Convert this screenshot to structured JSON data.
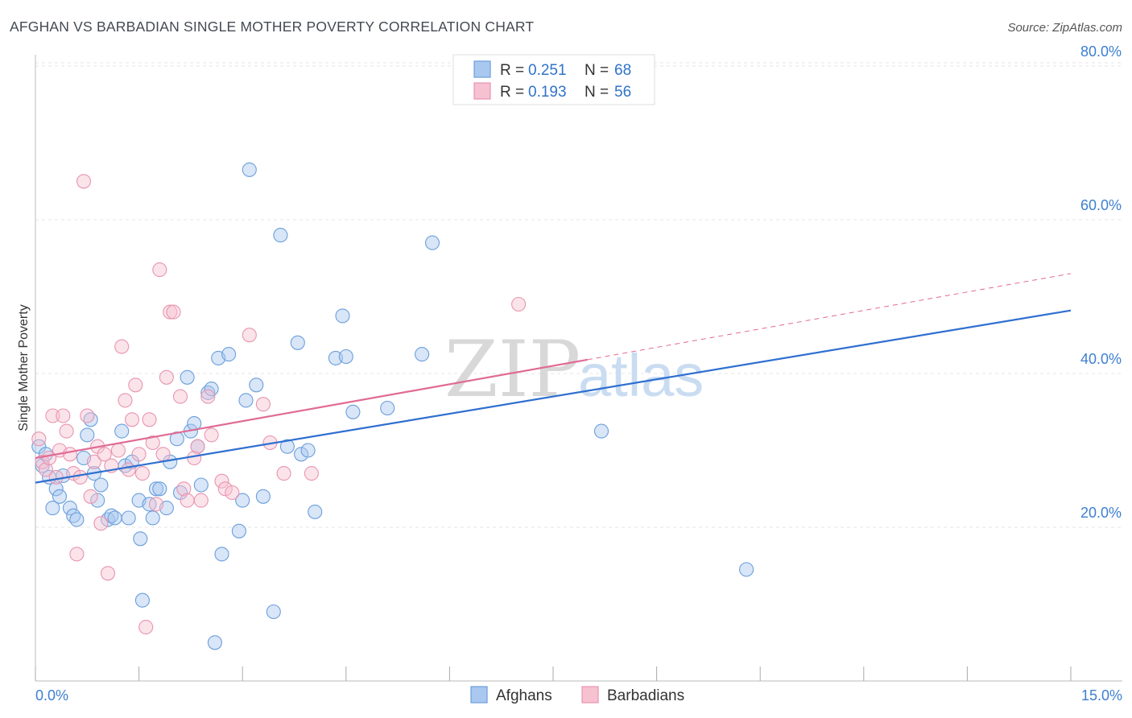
{
  "header": {
    "title": "AFGHAN VS BARBADIAN SINGLE MOTHER POVERTY CORRELATION CHART",
    "source": "Source: ZipAtlas.com"
  },
  "watermark": {
    "zip": "ZIP",
    "atlas": "atlas"
  },
  "legend": {
    "rows": [
      {
        "r_label": "R =",
        "r_value": "0.251",
        "n_label": "N =",
        "n_value": "68",
        "color": "#a9c8ef",
        "stroke": "#6b9edb"
      },
      {
        "r_label": "R =",
        "r_value": "0.193",
        "n_label": "N =",
        "n_value": "56",
        "color": "#f6c1d1",
        "stroke": "#e895b0"
      }
    ]
  },
  "bottom_legend": {
    "items": [
      "Afghans",
      "Barbadians"
    ]
  },
  "chart_data": {
    "type": "scatter",
    "title": "AFGHAN VS BARBADIAN SINGLE MOTHER POVERTY CORRELATION CHART",
    "xlabel": "",
    "ylabel": "Single Mother Poverty",
    "xlim": [
      0,
      15
    ],
    "ylim": [
      0,
      82
    ],
    "x_ticks": [
      "0.0%",
      "15.0%"
    ],
    "y_ticks": [
      {
        "value": 20,
        "label": "20.0%"
      },
      {
        "value": 40,
        "label": "40.0%"
      },
      {
        "value": 60,
        "label": "60.0%"
      },
      {
        "value": 80,
        "label": "80.0%"
      }
    ],
    "grid": true,
    "legend_position": "top-center",
    "series": [
      {
        "name": "Afghans",
        "color": "#6b9edb",
        "fill": "#a9c8ef",
        "trend": {
          "x": [
            0,
            15
          ],
          "y": [
            25.8,
            48.2
          ],
          "dashed_from": null
        },
        "points": [
          [
            0.05,
            30.5
          ],
          [
            0.1,
            28.0
          ],
          [
            0.15,
            29.5
          ],
          [
            0.2,
            26.5
          ],
          [
            0.25,
            22.5
          ],
          [
            0.3,
            25.0
          ],
          [
            0.35,
            24.0
          ],
          [
            0.4,
            26.7
          ],
          [
            0.5,
            22.5
          ],
          [
            0.55,
            21.5
          ],
          [
            0.6,
            21.0
          ],
          [
            0.7,
            29.0
          ],
          [
            0.75,
            32.0
          ],
          [
            0.8,
            34.0
          ],
          [
            0.85,
            27.0
          ],
          [
            0.9,
            23.5
          ],
          [
            0.95,
            25.5
          ],
          [
            1.05,
            21.0
          ],
          [
            1.1,
            21.5
          ],
          [
            1.15,
            21.2
          ],
          [
            1.25,
            32.5
          ],
          [
            1.3,
            28.0
          ],
          [
            1.35,
            21.2
          ],
          [
            1.4,
            28.5
          ],
          [
            1.5,
            23.5
          ],
          [
            1.52,
            18.5
          ],
          [
            1.55,
            10.5
          ],
          [
            1.65,
            23.0
          ],
          [
            1.7,
            21.2
          ],
          [
            1.75,
            25.0
          ],
          [
            1.8,
            25.0
          ],
          [
            1.9,
            22.5
          ],
          [
            1.95,
            28.5
          ],
          [
            2.05,
            31.5
          ],
          [
            2.1,
            24.5
          ],
          [
            2.2,
            39.5
          ],
          [
            2.25,
            32.5
          ],
          [
            2.3,
            33.5
          ],
          [
            2.35,
            30.5
          ],
          [
            2.4,
            25.5
          ],
          [
            2.5,
            37.5
          ],
          [
            2.55,
            38.0
          ],
          [
            2.6,
            5.0
          ],
          [
            2.65,
            42.0
          ],
          [
            2.7,
            16.5
          ],
          [
            2.8,
            42.5
          ],
          [
            2.95,
            19.5
          ],
          [
            3.0,
            23.5
          ],
          [
            3.05,
            36.5
          ],
          [
            3.1,
            66.5
          ],
          [
            3.2,
            38.5
          ],
          [
            3.3,
            24.0
          ],
          [
            3.45,
            9.0
          ],
          [
            3.55,
            58.0
          ],
          [
            3.65,
            30.5
          ],
          [
            3.8,
            44.0
          ],
          [
            3.85,
            29.5
          ],
          [
            3.95,
            30.0
          ],
          [
            4.05,
            22.0
          ],
          [
            4.35,
            42.0
          ],
          [
            4.45,
            47.5
          ],
          [
            4.5,
            42.2
          ],
          [
            4.6,
            35.0
          ],
          [
            5.1,
            35.5
          ],
          [
            5.6,
            42.5
          ],
          [
            5.75,
            57.0
          ],
          [
            8.2,
            32.5
          ],
          [
            10.3,
            14.5
          ]
        ]
      },
      {
        "name": "Barbadians",
        "color": "#e895b0",
        "fill": "#f6c1d1",
        "trend": {
          "x": [
            0,
            15
          ],
          "y": [
            29.0,
            53.0
          ],
          "dashed_from": 8.0
        },
        "points": [
          [
            0.05,
            31.5
          ],
          [
            0.1,
            28.5
          ],
          [
            0.15,
            27.5
          ],
          [
            0.2,
            29.0
          ],
          [
            0.25,
            34.5
          ],
          [
            0.3,
            26.5
          ],
          [
            0.35,
            30.0
          ],
          [
            0.4,
            34.5
          ],
          [
            0.45,
            32.5
          ],
          [
            0.5,
            29.5
          ],
          [
            0.55,
            27.0
          ],
          [
            0.6,
            16.5
          ],
          [
            0.65,
            26.5
          ],
          [
            0.7,
            65.0
          ],
          [
            0.75,
            34.5
          ],
          [
            0.8,
            24.0
          ],
          [
            0.85,
            28.5
          ],
          [
            0.9,
            30.5
          ],
          [
            0.95,
            20.5
          ],
          [
            1.0,
            29.5
          ],
          [
            1.05,
            14.0
          ],
          [
            1.1,
            28.0
          ],
          [
            1.2,
            30.0
          ],
          [
            1.25,
            43.5
          ],
          [
            1.3,
            36.5
          ],
          [
            1.35,
            27.5
          ],
          [
            1.4,
            34.0
          ],
          [
            1.45,
            38.5
          ],
          [
            1.5,
            29.5
          ],
          [
            1.55,
            27.0
          ],
          [
            1.6,
            7.0
          ],
          [
            1.65,
            34.0
          ],
          [
            1.7,
            31.0
          ],
          [
            1.75,
            23.0
          ],
          [
            1.8,
            53.5
          ],
          [
            1.85,
            29.5
          ],
          [
            1.9,
            39.5
          ],
          [
            1.95,
            48.0
          ],
          [
            2.0,
            48.0
          ],
          [
            2.1,
            37.0
          ],
          [
            2.15,
            25.0
          ],
          [
            2.2,
            23.5
          ],
          [
            2.3,
            29.0
          ],
          [
            2.35,
            30.5
          ],
          [
            2.4,
            23.5
          ],
          [
            2.5,
            37.0
          ],
          [
            2.55,
            32.0
          ],
          [
            2.7,
            26.0
          ],
          [
            2.75,
            25.0
          ],
          [
            2.85,
            24.5
          ],
          [
            3.1,
            45.0
          ],
          [
            3.3,
            36.0
          ],
          [
            3.4,
            31.0
          ],
          [
            3.6,
            27.0
          ],
          [
            4.0,
            27.0
          ],
          [
            7.0,
            49.0
          ]
        ]
      }
    ]
  }
}
